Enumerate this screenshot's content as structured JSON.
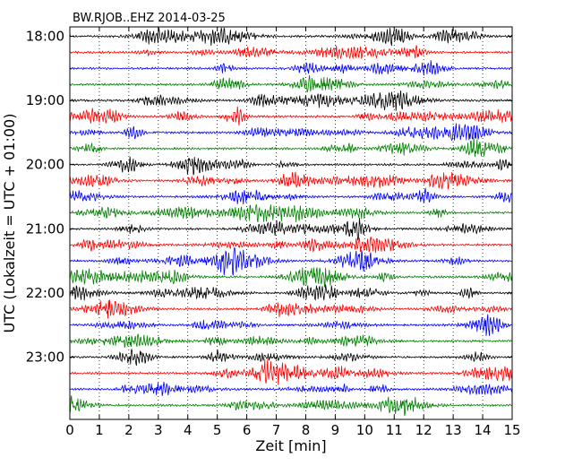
{
  "chart_data": {
    "type": "line",
    "title": "BW.RJOB..EHZ 2014-03-25",
    "xlabel": "Zeit  [min]",
    "ylabel": "UTC (Lokalzeit = UTC + 01:00)",
    "xlim": [
      0,
      15
    ],
    "x_ticks": [
      "0",
      "1",
      "2",
      "3",
      "4",
      "5",
      "6",
      "7",
      "8",
      "9",
      "10",
      "11",
      "12",
      "13",
      "14",
      "15"
    ],
    "y_ticks": [
      "18:00",
      "19:00",
      "20:00",
      "21:00",
      "22:00",
      "23:00"
    ],
    "traces_per_hour": 4,
    "start_hour": 18,
    "trace_count": 24,
    "trace_colors": [
      "#000000",
      "#ff0000",
      "#0000ff",
      "#008000"
    ],
    "grid": "vertical dotted at each minute"
  }
}
